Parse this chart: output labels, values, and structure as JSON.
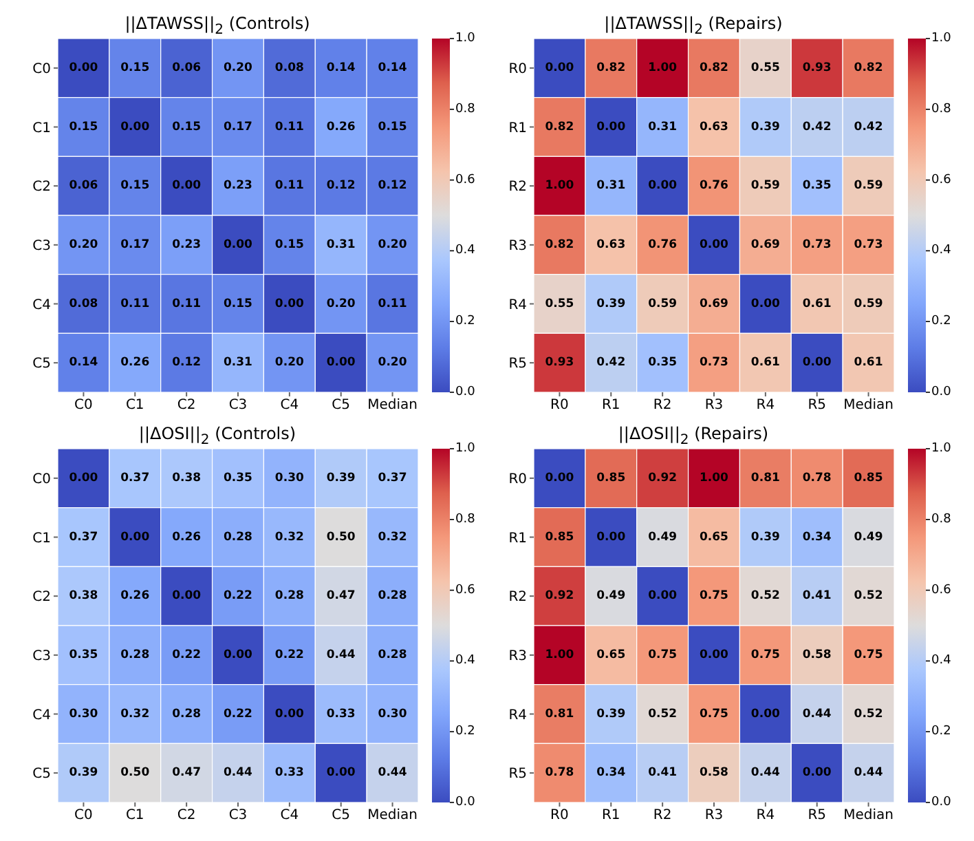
{
  "chart_data": [
    {
      "type": "heatmap",
      "title": "||ΔTAWSS||$_{2}$ (Controls)",
      "categories": [
        "C0",
        "C1",
        "C2",
        "C3",
        "C4",
        "C5",
        "Median"
      ],
      "y_categories": [
        "C0",
        "C1",
        "C2",
        "C3",
        "C4",
        "C5"
      ],
      "cells": [
        [
          0.0,
          0.15,
          0.06,
          0.2,
          0.08,
          0.14,
          0.14
        ],
        [
          0.15,
          0.0,
          0.15,
          0.17,
          0.11,
          0.26,
          0.15
        ],
        [
          0.06,
          0.15,
          0.0,
          0.23,
          0.11,
          0.12,
          0.12
        ],
        [
          0.2,
          0.17,
          0.23,
          0.0,
          0.15,
          0.31,
          0.2
        ],
        [
          0.08,
          0.11,
          0.11,
          0.15,
          0.0,
          0.2,
          0.11
        ],
        [
          0.14,
          0.26,
          0.12,
          0.31,
          0.2,
          0.0,
          0.2
        ]
      ],
      "cell_labels": [
        [
          "0.00",
          "0.15",
          "0.06",
          "0.20",
          "0.08",
          "0.14",
          "0.14"
        ],
        [
          "0.15",
          "0.00",
          "0.15",
          "0.17",
          "0.11",
          "0.26",
          "0.15"
        ],
        [
          "0.06",
          "0.15",
          "0.00",
          "0.23",
          "0.11",
          "0.12",
          "0.12"
        ],
        [
          "0.20",
          "0.17",
          "0.23",
          "0.00",
          "0.15",
          "0.31",
          "0.20"
        ],
        [
          "0.08",
          "0.11",
          "0.11",
          "0.15",
          "0.00",
          "0.20",
          "0.11"
        ],
        [
          "0.14",
          "0.26",
          "0.12",
          "0.31",
          "0.20",
          "0.00",
          "0.20"
        ]
      ],
      "clim": [
        0,
        1
      ],
      "cticks": [
        {
          "value": 0,
          "label": "0.0"
        },
        {
          "value": 0.2,
          "label": "0.2"
        },
        {
          "value": 0.4,
          "label": "0.4"
        },
        {
          "value": 0.6,
          "label": "0.6"
        },
        {
          "value": 0.8,
          "label": "0.8"
        },
        {
          "value": 1,
          "label": "1.0"
        }
      ],
      "data_labels": true
    },
    {
      "type": "heatmap",
      "title": "||ΔTAWSS||$_{2}$ (Repairs)",
      "categories": [
        "R0",
        "R1",
        "R2",
        "R3",
        "R4",
        "R5",
        "Median"
      ],
      "y_categories": [
        "R0",
        "R1",
        "R2",
        "R3",
        "R4",
        "R5"
      ],
      "cells": [
        [
          0.0,
          0.82,
          1.0,
          0.82,
          0.55,
          0.93,
          0.82
        ],
        [
          0.82,
          0.0,
          0.31,
          0.63,
          0.39,
          0.42,
          0.42
        ],
        [
          1.0,
          0.31,
          0.0,
          0.76,
          0.59,
          0.35,
          0.59
        ],
        [
          0.82,
          0.63,
          0.76,
          0.0,
          0.69,
          0.73,
          0.73
        ],
        [
          0.55,
          0.39,
          0.59,
          0.69,
          0.0,
          0.61,
          0.59
        ],
        [
          0.93,
          0.42,
          0.35,
          0.73,
          0.61,
          0.0,
          0.61
        ]
      ],
      "cell_labels": [
        [
          "0.00",
          "0.82",
          "1.00",
          "0.82",
          "0.55",
          "0.93",
          "0.82"
        ],
        [
          "0.82",
          "0.00",
          "0.31",
          "0.63",
          "0.39",
          "0.42",
          "0.42"
        ],
        [
          "1.00",
          "0.31",
          "0.00",
          "0.76",
          "0.59",
          "0.35",
          "0.59"
        ],
        [
          "0.82",
          "0.63",
          "0.76",
          "0.00",
          "0.69",
          "0.73",
          "0.73"
        ],
        [
          "0.55",
          "0.39",
          "0.59",
          "0.69",
          "0.00",
          "0.61",
          "0.59"
        ],
        [
          "0.93",
          "0.42",
          "0.35",
          "0.73",
          "0.61",
          "0.00",
          "0.61"
        ]
      ],
      "clim": [
        0,
        1
      ],
      "cticks": [
        {
          "value": 0,
          "label": "0.0"
        },
        {
          "value": 0.2,
          "label": "0.2"
        },
        {
          "value": 0.4,
          "label": "0.4"
        },
        {
          "value": 0.6,
          "label": "0.6"
        },
        {
          "value": 0.8,
          "label": "0.8"
        },
        {
          "value": 1,
          "label": "1.0"
        }
      ],
      "data_labels": true
    },
    {
      "type": "heatmap",
      "title": "||ΔOSI||$_{2}$ (Controls)",
      "categories": [
        "C0",
        "C1",
        "C2",
        "C3",
        "C4",
        "C5",
        "Median"
      ],
      "y_categories": [
        "C0",
        "C1",
        "C2",
        "C3",
        "C4",
        "C5"
      ],
      "cells": [
        [
          0.0,
          0.37,
          0.38,
          0.35,
          0.3,
          0.39,
          0.37
        ],
        [
          0.37,
          0.0,
          0.26,
          0.28,
          0.32,
          0.5,
          0.32
        ],
        [
          0.38,
          0.26,
          0.0,
          0.22,
          0.28,
          0.47,
          0.28
        ],
        [
          0.35,
          0.28,
          0.22,
          0.0,
          0.22,
          0.44,
          0.28
        ],
        [
          0.3,
          0.32,
          0.28,
          0.22,
          0.0,
          0.33,
          0.3
        ],
        [
          0.39,
          0.5,
          0.47,
          0.44,
          0.33,
          0.0,
          0.44
        ]
      ],
      "cell_labels": [
        [
          "0.00",
          "0.37",
          "0.38",
          "0.35",
          "0.30",
          "0.39",
          "0.37"
        ],
        [
          "0.37",
          "0.00",
          "0.26",
          "0.28",
          "0.32",
          "0.50",
          "0.32"
        ],
        [
          "0.38",
          "0.26",
          "0.00",
          "0.22",
          "0.28",
          "0.47",
          "0.28"
        ],
        [
          "0.35",
          "0.28",
          "0.22",
          "0.00",
          "0.22",
          "0.44",
          "0.28"
        ],
        [
          "0.30",
          "0.32",
          "0.28",
          "0.22",
          "0.00",
          "0.33",
          "0.30"
        ],
        [
          "0.39",
          "0.50",
          "0.47",
          "0.44",
          "0.33",
          "0.00",
          "0.44"
        ]
      ],
      "clim": [
        0,
        1
      ],
      "cticks": [
        {
          "value": 0,
          "label": "0.0"
        },
        {
          "value": 0.2,
          "label": "0.2"
        },
        {
          "value": 0.4,
          "label": "0.4"
        },
        {
          "value": 0.6,
          "label": "0.6"
        },
        {
          "value": 0.8,
          "label": "0.8"
        },
        {
          "value": 1,
          "label": "1.0"
        }
      ],
      "data_labels": true
    },
    {
      "type": "heatmap",
      "title": "||ΔOSI||$_{2}$ (Repairs)",
      "categories": [
        "R0",
        "R1",
        "R2",
        "R3",
        "R4",
        "R5",
        "Median"
      ],
      "y_categories": [
        "R0",
        "R1",
        "R2",
        "R3",
        "R4",
        "R5"
      ],
      "cells": [
        [
          0.0,
          0.85,
          0.92,
          1.0,
          0.81,
          0.78,
          0.85
        ],
        [
          0.85,
          0.0,
          0.49,
          0.65,
          0.39,
          0.34,
          0.49
        ],
        [
          0.92,
          0.49,
          0.0,
          0.75,
          0.52,
          0.41,
          0.52
        ],
        [
          1.0,
          0.65,
          0.75,
          0.0,
          0.75,
          0.58,
          0.75
        ],
        [
          0.81,
          0.39,
          0.52,
          0.75,
          0.0,
          0.44,
          0.52
        ],
        [
          0.78,
          0.34,
          0.41,
          0.58,
          0.44,
          0.0,
          0.44
        ]
      ],
      "cell_labels": [
        [
          "0.00",
          "0.85",
          "0.92",
          "1.00",
          "0.81",
          "0.78",
          "0.85"
        ],
        [
          "0.85",
          "0.00",
          "0.49",
          "0.65",
          "0.39",
          "0.34",
          "0.49"
        ],
        [
          "0.92",
          "0.49",
          "0.00",
          "0.75",
          "0.52",
          "0.41",
          "0.52"
        ],
        [
          "1.00",
          "0.65",
          "0.75",
          "0.00",
          "0.75",
          "0.58",
          "0.75"
        ],
        [
          "0.81",
          "0.39",
          "0.52",
          "0.75",
          "0.00",
          "0.44",
          "0.52"
        ],
        [
          "0.78",
          "0.34",
          "0.41",
          "0.58",
          "0.44",
          "0.00",
          "0.44"
        ]
      ],
      "clim": [
        0,
        1
      ],
      "cticks": [
        {
          "value": 0,
          "label": "0.0"
        },
        {
          "value": 0.2,
          "label": "0.2"
        },
        {
          "value": 0.4,
          "label": "0.4"
        },
        {
          "value": 0.6,
          "label": "0.6"
        },
        {
          "value": 0.8,
          "label": "0.8"
        },
        {
          "value": 1,
          "label": "1.0"
        }
      ],
      "data_labels": true
    }
  ]
}
